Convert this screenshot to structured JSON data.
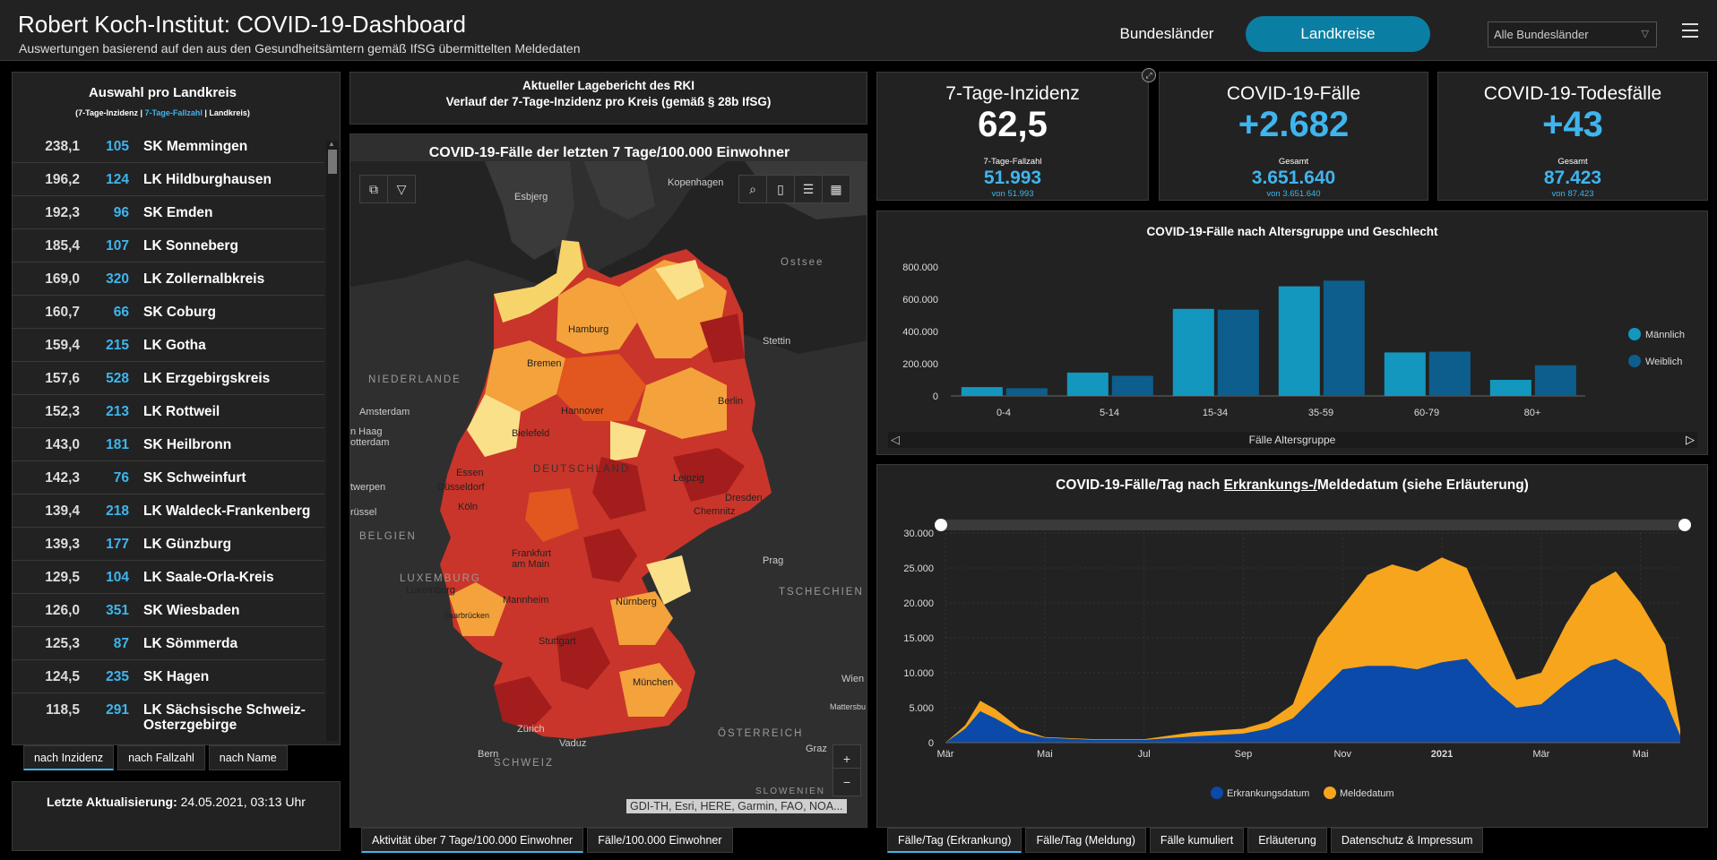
{
  "header": {
    "title": "Robert Koch-Institut: COVID-19-Dashboard",
    "subtitle": "Auswertungen basierend auf den aus den Gesundheitsämtern gemäß IfSG übermittelten Meldedaten",
    "nav_bundeslaender": "Bundesländer",
    "nav_landkreise": "Landkreise",
    "state_select_value": "Alle Bundesländer"
  },
  "list": {
    "title": "Auswahl pro Landkreis",
    "legend_inzidenz": "(7-Tage-Inzidenz",
    "legend_fallzahl": "7-Tage-Fallzahl",
    "legend_landkreis": "Landkreis)",
    "rows": [
      {
        "inz": "238,1",
        "cnt": "105",
        "name": "SK Memmingen"
      },
      {
        "inz": "196,2",
        "cnt": "124",
        "name": "LK Hildburghausen"
      },
      {
        "inz": "192,3",
        "cnt": "96",
        "name": "SK Emden"
      },
      {
        "inz": "185,4",
        "cnt": "107",
        "name": "LK Sonneberg"
      },
      {
        "inz": "169,0",
        "cnt": "320",
        "name": "LK Zollernalbkreis"
      },
      {
        "inz": "160,7",
        "cnt": "66",
        "name": "SK Coburg"
      },
      {
        "inz": "159,4",
        "cnt": "215",
        "name": "LK Gotha"
      },
      {
        "inz": "157,6",
        "cnt": "528",
        "name": "LK Erzgebirgskreis"
      },
      {
        "inz": "152,3",
        "cnt": "213",
        "name": "LK Rottweil"
      },
      {
        "inz": "143,0",
        "cnt": "181",
        "name": "SK Heilbronn"
      },
      {
        "inz": "142,3",
        "cnt": "76",
        "name": "SK Schweinfurt"
      },
      {
        "inz": "139,4",
        "cnt": "218",
        "name": "LK Waldeck-Frankenberg"
      },
      {
        "inz": "139,3",
        "cnt": "177",
        "name": "LK Günzburg"
      },
      {
        "inz": "129,5",
        "cnt": "104",
        "name": "LK Saale-Orla-Kreis"
      },
      {
        "inz": "126,0",
        "cnt": "351",
        "name": "SK Wiesbaden"
      },
      {
        "inz": "125,3",
        "cnt": "87",
        "name": "LK Sömmerda"
      },
      {
        "inz": "124,5",
        "cnt": "235",
        "name": "SK Hagen"
      },
      {
        "inz": "118,5",
        "cnt": "291",
        "name": "LK Sächsische Schweiz-Osterzgebirge"
      }
    ],
    "tabs": [
      "nach Inzidenz",
      "nach Fallzahl",
      "nach Name"
    ]
  },
  "update": {
    "label": "Letzte Aktualisierung:",
    "value": "24.05.2021, 03:13 Uhr"
  },
  "report": {
    "line1": "Aktueller Lagebericht des RKI",
    "line2": "Verlauf der 7-Tage-Inzidenz pro Kreis (gemäß § 28b IfSG)"
  },
  "map": {
    "title": "COVID-19-Fälle der letzten 7 Tage/100.000 Einwohner",
    "attribution": "GDI-TH, Esri, HERE, Garmin, FAO, NOA...",
    "places": {
      "esbjerg": "Esbjerg",
      "kopenhagen": "Kopenhagen",
      "ostsee": "Ostsee",
      "hamburg": "Hamburg",
      "stettin": "Stettin",
      "bremen": "Bremen",
      "niederlande": "NIEDERLANDE",
      "amsterdam": "Amsterdam",
      "den_haag": "n Haag",
      "rotterdam": "otterdam",
      "hannover": "Hannover",
      "berlin": "Berlin",
      "bielefeld": "Bielefeld",
      "deutschland": "DEUTSCHLAND",
      "essen": "Essen",
      "duesseldorf": "Düsseldorf",
      "koeln": "Köln",
      "leipzig": "Leipzig",
      "dresden": "Dresden",
      "chemnitz": "Chemnitz",
      "antwerpen": "twerpen",
      "bruessel": "rüssel",
      "belgien": "BELGIEN",
      "frankfurt": "Frankfurt am Main",
      "prag": "Prag",
      "luxemburg_region": "LUXEMBURG",
      "luxemburg": "Luxemburg",
      "tschechien": "TSCHECHIEN",
      "saarbruecken": "Saarbrücken",
      "mannheim": "Mannheim",
      "nuernberg": "Nürnberg",
      "stuttgart": "Stuttgart",
      "wien": "Wien",
      "mattersburg": "Mattersbu",
      "muenchen": "München",
      "oesterreich": "ÖSTERREICH",
      "zuerich": "Zürich",
      "vaduz": "Vaduz",
      "bern": "Bern",
      "schweiz": "SCHWEIZ",
      "graz": "Graz",
      "slowenien": "SLOWENIEN"
    },
    "tabs": [
      "Aktivität über 7 Tage/100.000 Einwohner",
      "Fälle/100.000 Einwohner"
    ]
  },
  "kpis": {
    "inzidenz": {
      "title": "7-Tage-Inzidenz",
      "value": "62,5",
      "sublabel": "7-Tage-Fallzahl",
      "subvalue": "51.993",
      "subnote": "von 51.993"
    },
    "faelle": {
      "title": "COVID-19-Fälle",
      "value": "+2.682",
      "sublabel": "Gesamt",
      "subvalue": "3.651.640",
      "subnote": "von 3.651.640"
    },
    "tode": {
      "title": "COVID-19-Todesfälle",
      "value": "+43",
      "sublabel": "Gesamt",
      "subvalue": "87.423",
      "subnote": "von 87.423"
    }
  },
  "age_chart": {
    "title": "COVID-19-Fälle nach Altersgruppe und Geschlecht",
    "xlabel": "Fälle Altersgruppe"
  },
  "daily_chart": {
    "title_prefix": "COVID-19-Fälle/Tag nach ",
    "title_link": "Erkrankungs-/",
    "title_suffix": "Meldedatum (siehe Erläuterung)",
    "tabs": [
      "Fälle/Tag (Erkrankung)",
      "Fälle/Tag (Meldung)",
      "Fälle kumuliert",
      "Erläuterung",
      "Datenschutz & Impressum"
    ]
  },
  "colors": {
    "accent": "#0b7ea3",
    "blue_text": "#3fb5ee",
    "male": "#1397be",
    "female": "#0d5e8c",
    "erkrankung": "#0b4aa8",
    "meldung": "#f7a51c"
  },
  "chart_data": [
    {
      "type": "bar",
      "title": "COVID-19-Fälle nach Altersgruppe und Geschlecht",
      "xlabel": "Fälle Altersgruppe",
      "ylabel": "",
      "categories": [
        "0-4",
        "5-14",
        "15-34",
        "35-59",
        "60-79",
        "80+"
      ],
      "series": [
        {
          "name": "Männlich",
          "values": [
            55000,
            145000,
            540000,
            680000,
            270000,
            100000
          ]
        },
        {
          "name": "Weiblich",
          "values": [
            48000,
            125000,
            535000,
            715000,
            275000,
            190000
          ]
        }
      ],
      "ylim": [
        0,
        800000
      ],
      "yticks": [
        "0",
        "200.000",
        "400.000",
        "600.000",
        "800.000"
      ],
      "legend": "right"
    },
    {
      "type": "area",
      "title": "COVID-19-Fälle/Tag nach Erkrankungs-/Meldedatum (siehe Erläuterung)",
      "x_ticks": [
        "Mär",
        "Mai",
        "Jul",
        "Sep",
        "Nov",
        "2021",
        "Mär",
        "Mai"
      ],
      "yticks": [
        "0",
        "5.000",
        "10.000",
        "15.000",
        "20.000",
        "25.000",
        "30.000"
      ],
      "ylim": [
        0,
        30000
      ],
      "x_months": [
        0,
        2,
        4,
        6,
        8,
        10,
        12,
        14
      ],
      "series": [
        {
          "name": "Erkrankungsdatum",
          "x": [
            0,
            0.4,
            0.7,
            1,
            1.5,
            2,
            3,
            4,
            5,
            6,
            6.5,
            7,
            7.5,
            8,
            8.5,
            9,
            9.5,
            10,
            10.5,
            11,
            11.5,
            12,
            12.5,
            13,
            13.5,
            14,
            14.5,
            14.8
          ],
          "values": [
            0,
            2000,
            4500,
            3500,
            1500,
            700,
            400,
            400,
            900,
            1300,
            2000,
            3500,
            7000,
            10500,
            11000,
            11000,
            10500,
            11500,
            12000,
            8000,
            5000,
            5500,
            8500,
            11000,
            12000,
            10000,
            6000,
            1000
          ]
        },
        {
          "name": "Meldedatum",
          "x": [
            0,
            0.4,
            0.7,
            1,
            1.5,
            2,
            3,
            4,
            5,
            6,
            6.5,
            7,
            7.5,
            8,
            8.5,
            9,
            9.5,
            10,
            10.5,
            11,
            11.5,
            12,
            12.5,
            13,
            13.5,
            14,
            14.5,
            14.8
          ],
          "values": [
            0,
            2500,
            6000,
            4800,
            2000,
            800,
            500,
            500,
            1500,
            2000,
            3000,
            5500,
            15000,
            19500,
            24000,
            25500,
            24500,
            26500,
            25000,
            17000,
            9000,
            10000,
            17000,
            22500,
            24500,
            20000,
            14000,
            2000
          ]
        }
      ],
      "legend": "bottom"
    }
  ]
}
